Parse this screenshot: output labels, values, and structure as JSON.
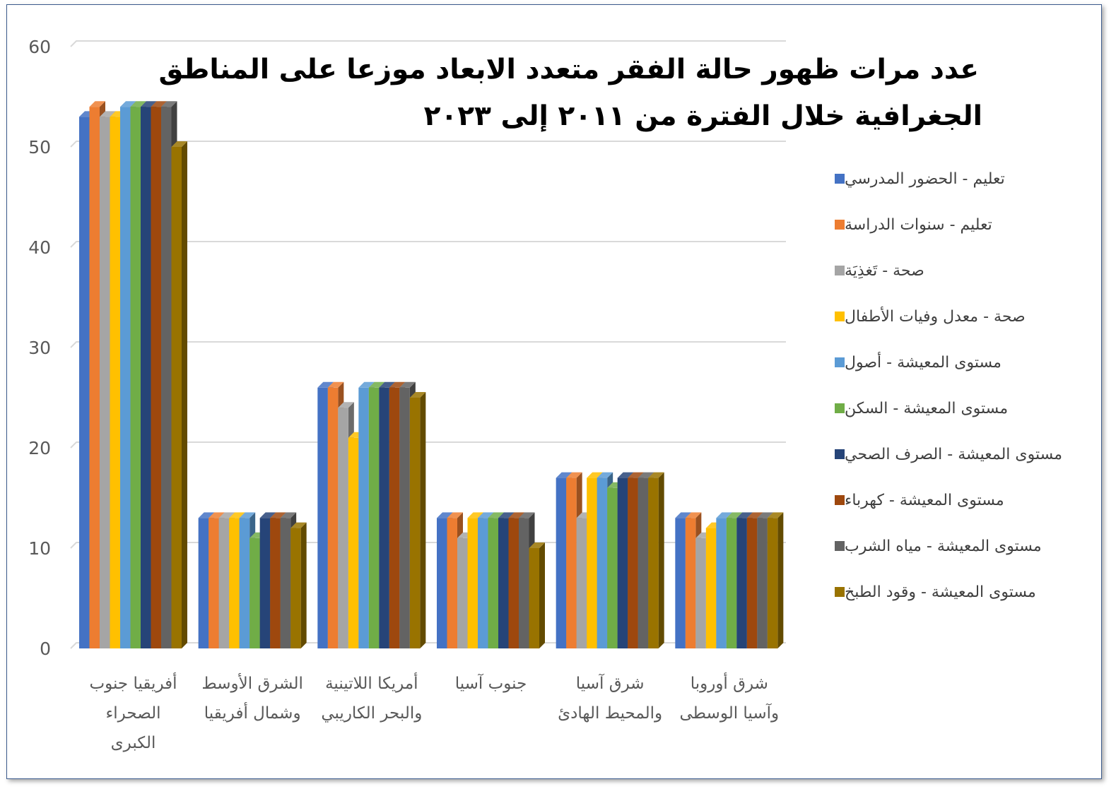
{
  "chart_data": {
    "type": "bar",
    "title_lines": [
      "عدد مرات ظهور حالة الفقر متعدد الابعاد موزعا على المناطق",
      "الجغرافية خلال الفترة  من ٢٠١١ إلى ٢٠٢٣"
    ],
    "categories": [
      [
        "أفريقيا جنوب",
        "الصحراء",
        "الكبرى"
      ],
      [
        "الشرق الأوسط",
        "وشمال أفريقيا"
      ],
      [
        "أمريكا اللاتينية",
        "والبحر الكاريبي"
      ],
      [
        "جنوب آسيا"
      ],
      [
        "شرق آسيا",
        "والمحيط الهادئ"
      ],
      [
        "شرق أوروبا",
        "وآسيا الوسطى"
      ]
    ],
    "ylim": [
      0,
      60
    ],
    "yticks": [
      "0",
      "10",
      "20",
      "30",
      "40",
      "50",
      "60"
    ],
    "grid": true,
    "legend_position": "right",
    "bar_style": "3d",
    "series": [
      {
        "name": "تعليم - الحضور المدرسي",
        "color": "#4472C4",
        "values": [
          53,
          13,
          26,
          13,
          17,
          13
        ]
      },
      {
        "name": "تعليم - سنوات الدراسة",
        "color": "#ED7D31",
        "values": [
          54,
          13,
          26,
          13,
          17,
          13
        ]
      },
      {
        "name": "صحة - تَغذِيَة",
        "color": "#A5A5A5",
        "values": [
          53,
          13,
          24,
          11,
          13,
          11
        ]
      },
      {
        "name": "صحة - معدل وفيات الأطفال",
        "color": "#FFC000",
        "values": [
          53,
          13,
          21,
          13,
          17,
          12
        ]
      },
      {
        "name": "مستوى المعيشة - أصول",
        "color": "#5B9BD5",
        "values": [
          54,
          13,
          26,
          13,
          17,
          13
        ]
      },
      {
        "name": "مستوى المعيشة - السكن",
        "color": "#70AD47",
        "values": [
          54,
          11,
          26,
          13,
          16,
          13
        ]
      },
      {
        "name": "مستوى المعيشة - الصرف الصحي",
        "color": "#264478",
        "values": [
          54,
          13,
          26,
          13,
          17,
          13
        ]
      },
      {
        "name": "مستوى المعيشة - كهرباء",
        "color": "#9E480E",
        "values": [
          54,
          13,
          26,
          13,
          17,
          13
        ]
      },
      {
        "name": "مستوى المعيشة - مياه الشرب",
        "color": "#636363",
        "values": [
          54,
          13,
          26,
          13,
          17,
          13
        ]
      },
      {
        "name": "مستوى المعيشة - وقود الطبخ",
        "color": "#997300",
        "values": [
          50,
          12,
          25,
          10,
          17,
          13
        ]
      }
    ]
  }
}
